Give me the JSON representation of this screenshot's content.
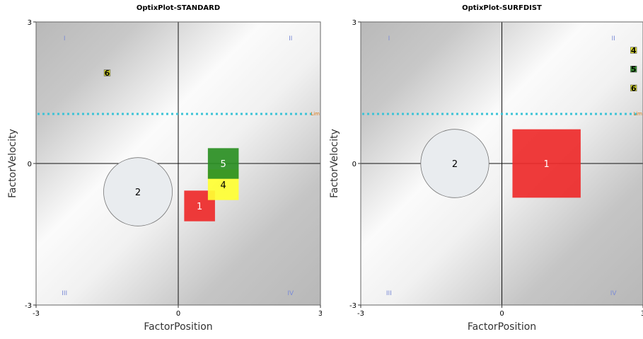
{
  "chart_data": [
    {
      "type": "scatter",
      "title": "OptixPlot-STANDARD",
      "xlabel": "FactorPosition",
      "ylabel": "FactorVelocity",
      "xlim": [
        -3,
        3
      ],
      "ylim": [
        -3,
        3
      ],
      "x_ticks": [
        "-3",
        "0",
        "3"
      ],
      "y_ticks": [
        "3",
        "0",
        "-3"
      ],
      "quadrants": [
        "I",
        "II",
        "III",
        "IV"
      ],
      "limit_line": {
        "y": 1.05,
        "label": "Lim"
      },
      "points": [
        {
          "id": "1",
          "shape": "square",
          "x": 0.45,
          "y": -0.9,
          "size": 0.65,
          "color": "#ee2a2a"
        },
        {
          "id": "2",
          "shape": "circle",
          "x": -0.85,
          "y": -0.6,
          "size": 1.45,
          "color": "#e9ecef"
        },
        {
          "id": "4",
          "shape": "square",
          "x": 0.95,
          "y": -0.45,
          "size": 0.65,
          "color": "#ffff33"
        },
        {
          "id": "5",
          "shape": "square",
          "x": 0.95,
          "y": 0.0,
          "size": 0.65,
          "color": "#2a8f23"
        },
        {
          "id": "6",
          "shape": "square",
          "x": -1.5,
          "y": 1.92,
          "size": 0.13,
          "color": "#e0e020"
        }
      ]
    },
    {
      "type": "scatter",
      "title": "OptixPlot-SURFDIST",
      "xlabel": "FactorPosition",
      "ylabel": "FactorVelocity",
      "xlim": [
        -3,
        3
      ],
      "ylim": [
        -3,
        3
      ],
      "x_ticks": [
        "-3",
        "0",
        "3"
      ],
      "y_ticks": [
        "3",
        "0",
        "-3"
      ],
      "quadrants": [
        "I",
        "II",
        "III",
        "IV"
      ],
      "limit_line": {
        "y": 1.05,
        "label": "Lim"
      },
      "points": [
        {
          "id": "1",
          "shape": "square",
          "x": 0.95,
          "y": 0.0,
          "size": 1.45,
          "color": "#ee2a2a"
        },
        {
          "id": "2",
          "shape": "circle",
          "x": -1.0,
          "y": 0.0,
          "size": 1.45,
          "color": "#e9ecef"
        },
        {
          "id": "4",
          "shape": "square",
          "x": 2.8,
          "y": 2.4,
          "size": 0.13,
          "color": "#e0e020"
        },
        {
          "id": "5",
          "shape": "square",
          "x": 2.8,
          "y": 2.0,
          "size": 0.13,
          "color": "#2a8f23"
        },
        {
          "id": "6",
          "shape": "square",
          "x": 2.8,
          "y": 1.6,
          "size": 0.13,
          "color": "#e0e020"
        }
      ]
    }
  ]
}
